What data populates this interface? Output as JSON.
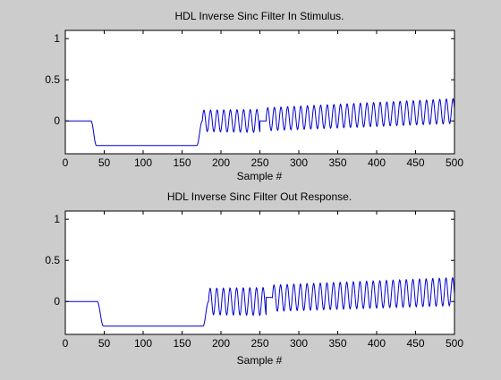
{
  "figure": {
    "background": "#cccccc"
  },
  "chart_data": [
    {
      "type": "line",
      "title": "HDL Inverse Sinc Filter In Stimulus.",
      "xlabel": "Sample #",
      "ylabel": "",
      "xlim": [
        0,
        500
      ],
      "ylim": [
        -0.4,
        1.1
      ],
      "xticks": [
        0,
        50,
        100,
        150,
        200,
        250,
        300,
        350,
        400,
        450,
        500
      ],
      "xtick_labels": [
        "0",
        "50",
        "100",
        "150",
        "200",
        "250",
        "300",
        "350",
        "400",
        "450",
        "500"
      ],
      "yticks": [
        0,
        0.5,
        1
      ],
      "ytick_labels": [
        "0",
        "0.5",
        "1"
      ],
      "grid": false,
      "line_color": "#0000cc",
      "series": [
        {
          "segments": [
            {
              "kind": "flat",
              "x_start": 0,
              "x_end": 33,
              "value": 0
            },
            {
              "kind": "step",
              "x_start": 33,
              "x_end": 40,
              "from": 0,
              "to": -0.3
            },
            {
              "kind": "flat",
              "x_start": 40,
              "x_end": 169,
              "value": -0.3
            },
            {
              "kind": "step",
              "x_start": 169,
              "x_end": 176,
              "from": -0.3,
              "to": 0
            },
            {
              "kind": "sine",
              "x_start": 176,
              "x_end": 250,
              "offset": 0,
              "amp_start": 0.13,
              "amp_end": 0.14,
              "period": 8.5
            },
            {
              "kind": "flat",
              "x_start": 250,
              "x_end": 258,
              "value": 0
            },
            {
              "kind": "sine",
              "x_start": 258,
              "x_end": 500,
              "offset_start": 0.02,
              "offset_end": 0.12,
              "amp_start": 0.14,
              "amp_end": 0.15,
              "period": 8.5
            }
          ]
        }
      ]
    },
    {
      "type": "line",
      "title": "HDL Inverse Sinc Filter Out Response.",
      "xlabel": "Sample #",
      "ylabel": "",
      "xlim": [
        0,
        500
      ],
      "ylim": [
        -0.4,
        1.1
      ],
      "xticks": [
        0,
        50,
        100,
        150,
        200,
        250,
        300,
        350,
        400,
        450,
        500
      ],
      "xtick_labels": [
        "0",
        "50",
        "100",
        "150",
        "200",
        "250",
        "300",
        "350",
        "400",
        "450",
        "500"
      ],
      "yticks": [
        0,
        0.5,
        1
      ],
      "ytick_labels": [
        "0",
        "0.5",
        "1"
      ],
      "grid": false,
      "line_color": "#0000cc",
      "series": [
        {
          "segments": [
            {
              "kind": "flat",
              "x_start": 0,
              "x_end": 41,
              "value": 0
            },
            {
              "kind": "step",
              "x_start": 41,
              "x_end": 49,
              "from": 0,
              "to": -0.3
            },
            {
              "kind": "flat",
              "x_start": 49,
              "x_end": 177,
              "value": -0.3
            },
            {
              "kind": "step",
              "x_start": 177,
              "x_end": 184,
              "from": -0.3,
              "to": 0
            },
            {
              "kind": "sine",
              "x_start": 184,
              "x_end": 258,
              "offset": 0,
              "amp_start": 0.16,
              "amp_end": 0.17,
              "period": 8.5
            },
            {
              "kind": "flat",
              "x_start": 258,
              "x_end": 266,
              "value": 0.05
            },
            {
              "kind": "sine",
              "x_start": 266,
              "x_end": 500,
              "offset_start": 0.04,
              "offset_end": 0.12,
              "amp_start": 0.16,
              "amp_end": 0.17,
              "period": 8.5
            }
          ]
        }
      ]
    }
  ]
}
